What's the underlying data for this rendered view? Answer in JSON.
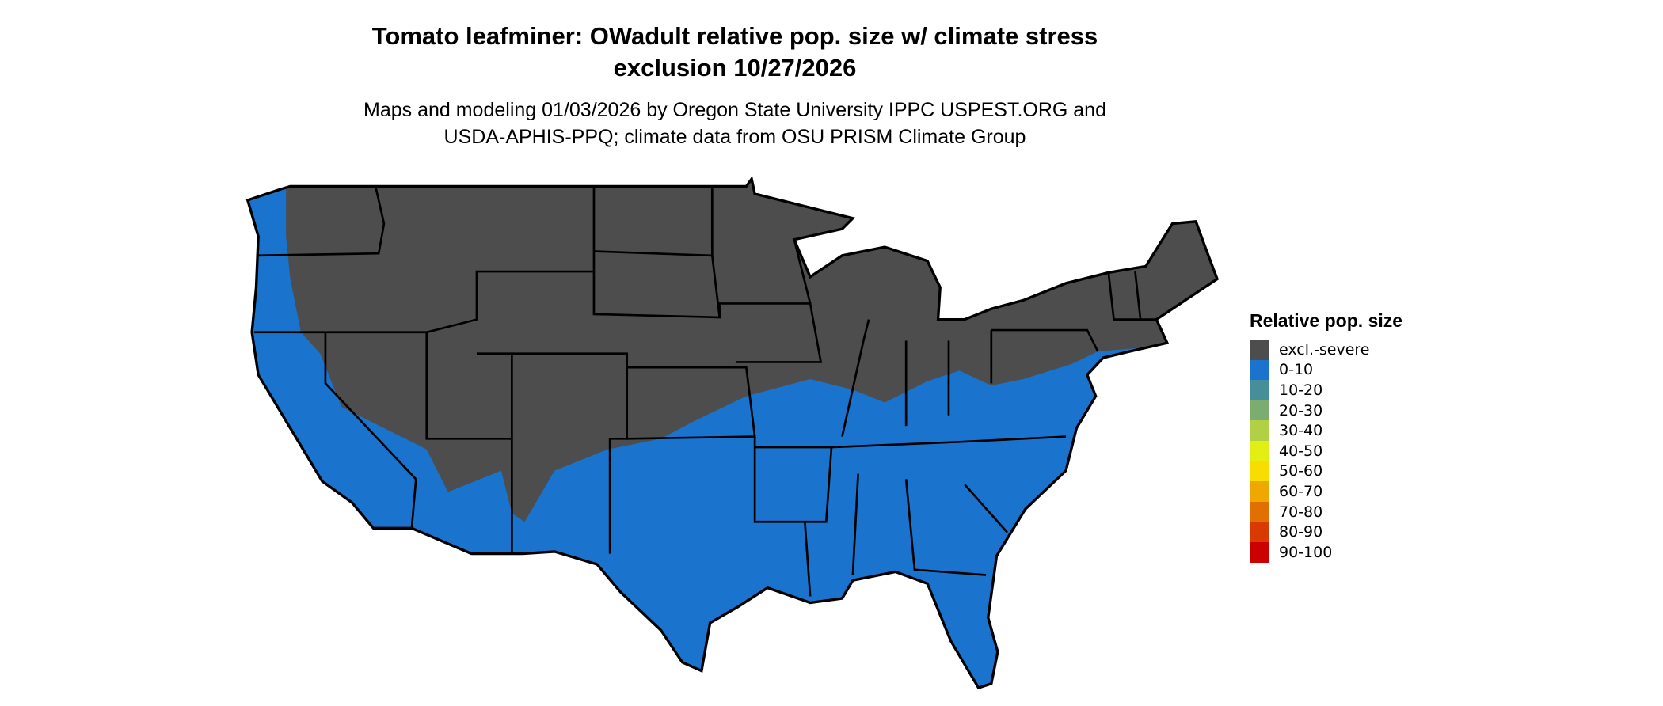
{
  "title_line1": "Tomato leafminer: OWadult relative pop. size w/ climate stress",
  "title_line2": "exclusion 10/27/2026",
  "subtitle_line1": "Maps and modeling 01/03/2026 by Oregon State University IPPC USPEST.ORG and",
  "subtitle_line2": "USDA-APHIS-PPQ; climate data from OSU PRISM Climate Group",
  "map": {
    "region": "Contiguous United States",
    "dominant_classes": [
      "excl.-severe",
      "0-10"
    ]
  },
  "legend": {
    "title": "Relative pop. size",
    "items": [
      {
        "label": "excl.-severe",
        "color": "#4d4d4d"
      },
      {
        "label": "0-10",
        "color": "#1a73cc"
      },
      {
        "label": "10-20",
        "color": "#468f9a"
      },
      {
        "label": "20-30",
        "color": "#7cad70"
      },
      {
        "label": "30-40",
        "color": "#b0d045"
      },
      {
        "label": "40-50",
        "color": "#e3ef14"
      },
      {
        "label": "50-60",
        "color": "#f8de00"
      },
      {
        "label": "60-70",
        "color": "#efa800"
      },
      {
        "label": "70-80",
        "color": "#e27000"
      },
      {
        "label": "80-90",
        "color": "#d83a00"
      },
      {
        "label": "90-100",
        "color": "#cc0000"
      }
    ]
  }
}
